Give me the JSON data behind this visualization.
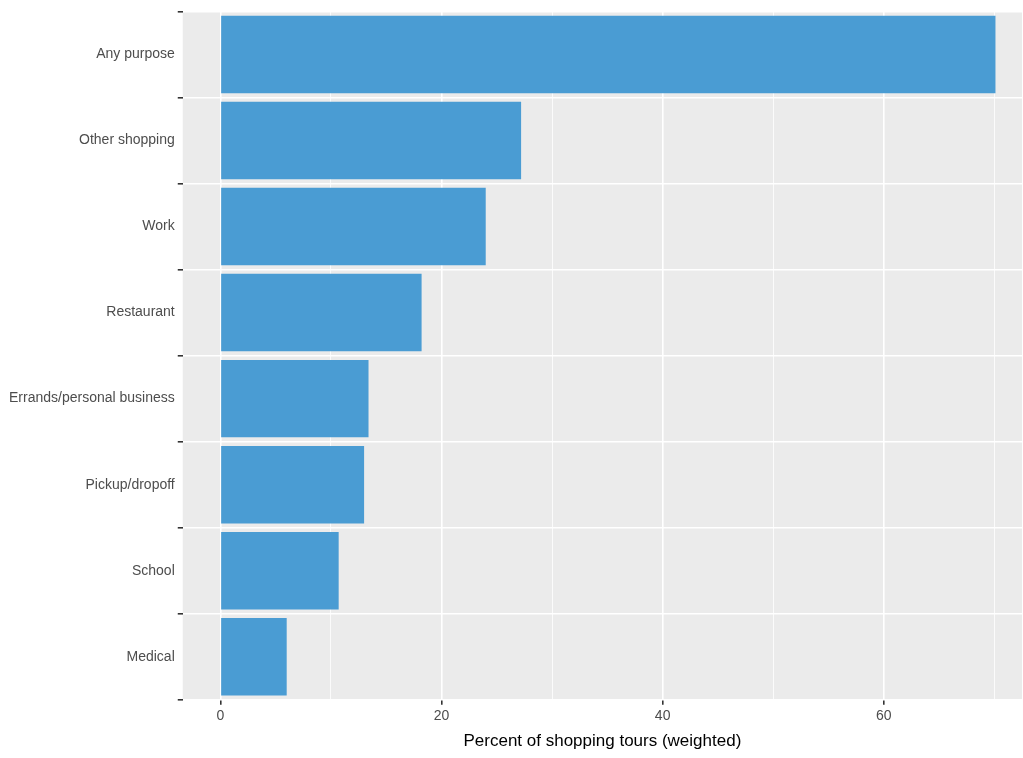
{
  "chart_data": {
    "type": "bar",
    "orientation": "horizontal",
    "xlabel": "Percent of shopping tours (weighted)",
    "categories": [
      "Any purpose",
      "Other shopping",
      "Work",
      "Restaurant",
      "Errands/personal business",
      "Pickup/dropoff",
      "School",
      "Medical"
    ],
    "values": [
      70.1,
      27.2,
      24.0,
      18.2,
      13.4,
      13.0,
      10.7,
      6.0
    ],
    "color": "#4a9cd3",
    "xlim": [
      -3.4,
      72.5
    ],
    "xticks": [
      0,
      {
        "value": 10,
        "label": null
      },
      20,
      {
        "value": 30,
        "label": null
      },
      40,
      {
        "value": 50,
        "label": null
      },
      60,
      {
        "value": 70,
        "label": null
      }
    ],
    "grid": true,
    "legend": false
  }
}
